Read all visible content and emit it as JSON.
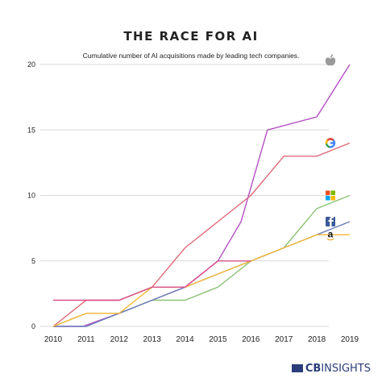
{
  "chart_data": {
    "type": "line",
    "title": "THE RACE FOR AI",
    "subtitle": "Cumulative number of AI acquisitions made by leading tech companies.",
    "x": [
      2010,
      2011,
      2012,
      2013,
      2014,
      2015,
      2016,
      2017,
      2018,
      2019
    ],
    "xlim": [
      2010,
      2019
    ],
    "ylim": [
      0,
      20
    ],
    "yticks": [
      0,
      5,
      10,
      15,
      20
    ],
    "grid": "horizontal",
    "legend": "icons at line ends",
    "series": [
      {
        "icon": "apple-icon",
        "color": "#b44fc4",
        "points": [
          [
            2010,
            0
          ],
          [
            2010.9,
            0
          ],
          [
            2012,
            1
          ],
          [
            2013,
            2
          ],
          [
            2014,
            3
          ],
          [
            2015,
            5
          ],
          [
            2015.7,
            8
          ],
          [
            2016.5,
            15
          ],
          [
            2018,
            16
          ],
          [
            2019,
            20
          ]
        ]
      },
      {
        "icon": "google-icon",
        "color": "#e0697a",
        "points": [
          [
            2010,
            0
          ],
          [
            2011,
            2
          ],
          [
            2012,
            2
          ],
          [
            2013,
            3
          ],
          [
            2014,
            6
          ],
          [
            2015,
            8
          ],
          [
            2016,
            10
          ],
          [
            2017,
            13
          ],
          [
            2018,
            13
          ],
          [
            2019,
            14
          ]
        ]
      },
      {
        "icon": "microsoft-icon",
        "color": "#8cc275",
        "points": [
          [
            2010,
            0
          ],
          [
            2011,
            1
          ],
          [
            2012,
            1
          ],
          [
            2013,
            2
          ],
          [
            2014,
            2
          ],
          [
            2015,
            3
          ],
          [
            2016,
            5
          ],
          [
            2017,
            6
          ],
          [
            2018,
            9
          ],
          [
            2019,
            10
          ]
        ]
      },
      {
        "icon": "facebook-icon",
        "color": "#6b7fb8",
        "points": [
          [
            2010,
            0
          ],
          [
            2011,
            0
          ],
          [
            2012,
            1
          ],
          [
            2013,
            2
          ],
          [
            2014,
            3
          ],
          [
            2015,
            4
          ],
          [
            2016,
            5
          ],
          [
            2017,
            6
          ],
          [
            2018,
            7
          ],
          [
            2019,
            8
          ]
        ]
      },
      {
        "icon": "amazon-icon",
        "color": "#f5b93a",
        "points": [
          [
            2010,
            0
          ],
          [
            2011,
            1
          ],
          [
            2012,
            1
          ],
          [
            2013,
            3
          ],
          [
            2014,
            3
          ],
          [
            2015,
            4
          ],
          [
            2016,
            5
          ],
          [
            2017,
            6
          ],
          [
            2018,
            7
          ],
          [
            2019,
            7
          ]
        ]
      },
      {
        "icon": "",
        "color": "#d94f86",
        "points": [
          [
            2010,
            2
          ],
          [
            2012,
            2
          ],
          [
            2013,
            3
          ],
          [
            2014,
            3
          ],
          [
            2015,
            5
          ],
          [
            2016,
            5
          ]
        ]
      }
    ]
  },
  "footer": {
    "brand_prefix": "CB",
    "brand_suffix": "INSIGHTS"
  }
}
